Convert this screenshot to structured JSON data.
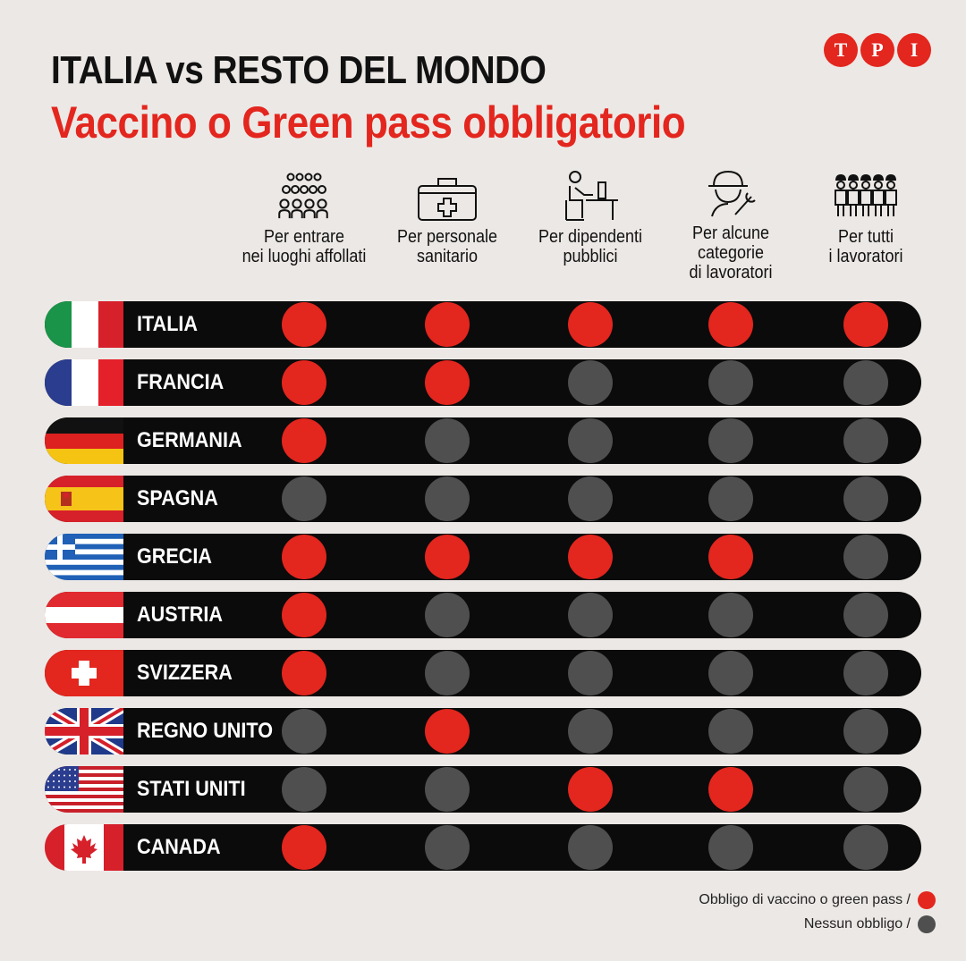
{
  "header": {
    "title_line1": "ITALIA vs RESTO DEL MONDO",
    "title_line2": "Vaccino o Green pass obbligatorio"
  },
  "logo": {
    "letters": [
      "T",
      "P",
      "I"
    ],
    "color": "#e3261e"
  },
  "colors": {
    "obligation": "#e3261e",
    "none": "#4f4f4f",
    "row_bg": "#0b0b0b",
    "title_red": "#e3261e"
  },
  "chart_data": {
    "type": "table",
    "columns": [
      {
        "label": "Per entrare\nnei luoghi affollati",
        "icon": "crowd-icon"
      },
      {
        "label": "Per personale\nsanitario",
        "icon": "medical-kit-icon"
      },
      {
        "label": "Per dipendenti\npubblici",
        "icon": "office-worker-icon"
      },
      {
        "label": "Per alcune\ncategorie\ndi lavoratori",
        "icon": "worker-helmet-icon"
      },
      {
        "label": "Per tutti\ni lavoratori",
        "icon": "workers-group-icon"
      }
    ],
    "rows": [
      {
        "country": "ITALIA",
        "flag": "italy-flag-icon",
        "values": [
          1,
          1,
          1,
          1,
          1
        ]
      },
      {
        "country": "FRANCIA",
        "flag": "france-flag-icon",
        "values": [
          1,
          1,
          0,
          0,
          0
        ]
      },
      {
        "country": "GERMANIA",
        "flag": "germany-flag-icon",
        "values": [
          1,
          0,
          0,
          0,
          0
        ]
      },
      {
        "country": "SPAGNA",
        "flag": "spain-flag-icon",
        "values": [
          0,
          0,
          0,
          0,
          0
        ]
      },
      {
        "country": "GRECIA",
        "flag": "greece-flag-icon",
        "values": [
          1,
          1,
          1,
          1,
          0
        ]
      },
      {
        "country": "AUSTRIA",
        "flag": "austria-flag-icon",
        "values": [
          1,
          0,
          0,
          0,
          0
        ]
      },
      {
        "country": "SVIZZERA",
        "flag": "switzerland-flag-icon",
        "values": [
          1,
          0,
          0,
          0,
          0
        ]
      },
      {
        "country": "REGNO UNITO",
        "flag": "uk-flag-icon",
        "values": [
          0,
          1,
          0,
          0,
          0
        ]
      },
      {
        "country": "STATI UNITI",
        "flag": "usa-flag-icon",
        "values": [
          0,
          0,
          1,
          1,
          0
        ]
      },
      {
        "country": "CANADA",
        "flag": "canada-flag-icon",
        "values": [
          1,
          0,
          0,
          0,
          0
        ]
      }
    ],
    "legend": [
      {
        "label": "Obbligo di vaccino o green pass /",
        "value": 1
      },
      {
        "label": "Nessun obbligo /",
        "value": 0
      }
    ]
  }
}
